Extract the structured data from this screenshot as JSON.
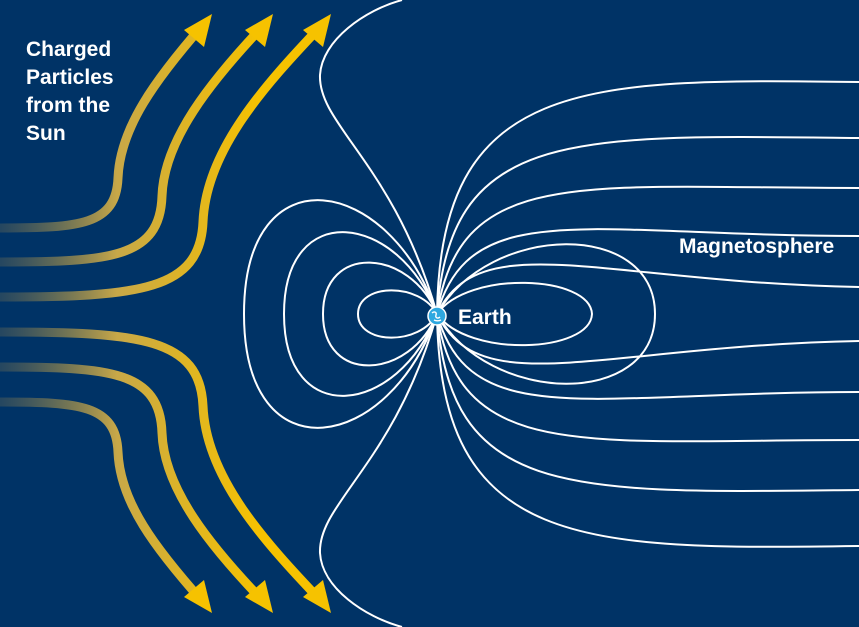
{
  "labels": {
    "sun_lines": [
      "Charged",
      "Particles",
      "from the",
      "Sun"
    ],
    "earth": "Earth",
    "magnetosphere": "Magnetosphere"
  },
  "icons": {
    "earth": "earth-globe-icon",
    "particle_flow": "arrow-icon"
  },
  "colors": {
    "background": "#003366",
    "field_lines": "#ffffff",
    "particle_arrows": "#f6c200",
    "particle_arrow_tail": "#4a5a5a",
    "earth": "#2ea8e0"
  }
}
